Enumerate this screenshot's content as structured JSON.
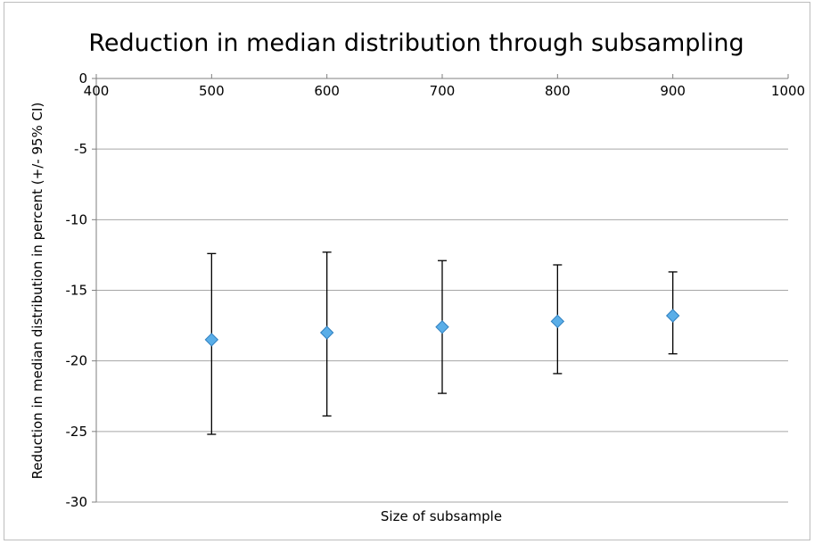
{
  "chart_data": {
    "type": "scatter",
    "title": "Reduction in median distribution through subsampling",
    "xlabel": "Size of subsample",
    "ylabel": "Reduction in median distribution in percent (+/- 95% CI)",
    "xlim": [
      400,
      1000
    ],
    "ylim": [
      -30,
      0
    ],
    "x_ticks": [
      400,
      500,
      600,
      700,
      800,
      900,
      1000
    ],
    "y_ticks": [
      0,
      -5,
      -10,
      -15,
      -20,
      -25,
      -30
    ],
    "x_axis_position": "top",
    "grid": "horizontal",
    "legend": "none",
    "marker": "diamond",
    "colors": {
      "marker_fill": "#5aaee8",
      "marker_edge": "#2f7fbf",
      "error_bar": "#000000",
      "grid": "#a6a6a6",
      "axis": "#7f7f7f"
    },
    "series": [
      {
        "x": [
          500,
          600,
          700,
          800,
          900
        ],
        "y": [
          -18.5,
          -18.0,
          -17.6,
          -17.2,
          -16.8
        ],
        "y_lower": [
          -25.2,
          -23.9,
          -22.3,
          -20.9,
          -19.5
        ],
        "y_upper": [
          -12.4,
          -12.3,
          -12.9,
          -13.2,
          -13.7
        ]
      }
    ]
  }
}
